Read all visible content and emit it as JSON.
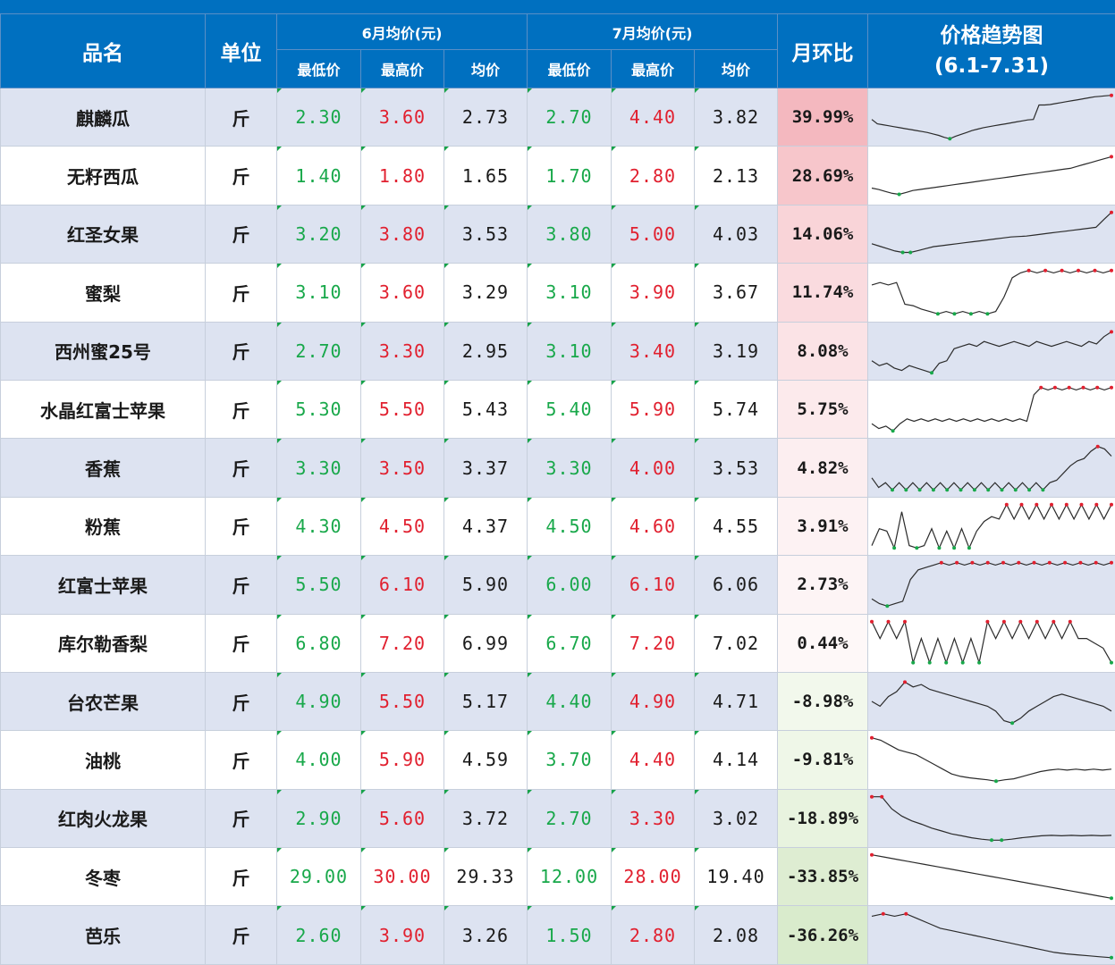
{
  "header": {
    "name": "品名",
    "unit": "单位",
    "june_group": "6月均价(元)",
    "july_group": "7月均价(元)",
    "low": "最低价",
    "high": "最高价",
    "avg": "均价",
    "mom": "月环比",
    "trend_title": "价格趋势图",
    "trend_range": "(6.1-7.31)"
  },
  "rows": [
    {
      "name": "麒麟瓜",
      "unit": "斤",
      "jun_low": "2.30",
      "jun_high": "3.60",
      "jun_avg": "2.73",
      "jul_low": "2.70",
      "jul_high": "4.40",
      "jul_avg": "3.82",
      "mom": "39.99%",
      "mom_value": 39.99,
      "heat": "#f4b8bf",
      "trend": [
        0.55,
        0.64,
        0.66,
        0.68,
        0.7,
        0.72,
        0.74,
        0.76,
        0.78,
        0.8,
        0.82,
        0.85,
        0.88,
        0.92,
        0.95,
        0.9,
        0.86,
        0.82,
        0.78,
        0.75,
        0.72,
        0.7,
        0.68,
        0.66,
        0.64,
        0.62,
        0.6,
        0.58,
        0.56,
        0.55,
        0.25,
        0.25,
        0.24,
        0.22,
        0.2,
        0.18,
        0.16,
        0.14,
        0.12,
        0.1,
        0.08,
        0.07,
        0.06,
        0.05
      ]
    },
    {
      "name": "无籽西瓜",
      "unit": "斤",
      "jun_low": "1.40",
      "jun_high": "1.80",
      "jun_avg": "1.65",
      "jul_low": "1.70",
      "jul_high": "2.80",
      "jul_avg": "2.13",
      "mom": "28.69%",
      "mom_value": 28.69,
      "heat": "#f7c6cb",
      "trend": [
        0.75,
        0.78,
        0.82,
        0.86,
        0.88,
        0.84,
        0.8,
        0.78,
        0.76,
        0.74,
        0.72,
        0.7,
        0.68,
        0.66,
        0.64,
        0.62,
        0.6,
        0.58,
        0.56,
        0.54,
        0.52,
        0.5,
        0.48,
        0.46,
        0.44,
        0.42,
        0.4,
        0.38,
        0.36,
        0.34,
        0.3,
        0.26,
        0.22,
        0.18,
        0.14,
        0.1
      ]
    },
    {
      "name": "红圣女果",
      "unit": "斤",
      "jun_low": "3.20",
      "jun_high": "3.80",
      "jun_avg": "3.53",
      "jul_low": "3.80",
      "jul_high": "5.00",
      "jul_avg": "4.03",
      "mom": "14.06%",
      "mom_value": 14.06,
      "heat": "#f9d4d8",
      "trend": [
        0.7,
        0.75,
        0.8,
        0.85,
        0.88,
        0.88,
        0.84,
        0.8,
        0.76,
        0.74,
        0.72,
        0.7,
        0.68,
        0.66,
        0.64,
        0.62,
        0.6,
        0.58,
        0.56,
        0.55,
        0.54,
        0.52,
        0.5,
        0.48,
        0.46,
        0.44,
        0.42,
        0.4,
        0.38,
        0.36,
        0.2,
        0.05
      ]
    },
    {
      "name": "蜜梨",
      "unit": "斤",
      "jun_low": "3.10",
      "jun_high": "3.60",
      "jun_avg": "3.29",
      "jul_low": "3.10",
      "jul_high": "3.90",
      "jul_avg": "3.67",
      "mom": "11.74%",
      "mom_value": 11.74,
      "heat": "#fadbdf",
      "trend": [
        0.35,
        0.3,
        0.35,
        0.3,
        0.75,
        0.78,
        0.85,
        0.9,
        0.95,
        0.9,
        0.95,
        0.9,
        0.95,
        0.9,
        0.95,
        0.9,
        0.6,
        0.2,
        0.1,
        0.05,
        0.1,
        0.05,
        0.1,
        0.05,
        0.1,
        0.05,
        0.1,
        0.05,
        0.1,
        0.05
      ]
    },
    {
      "name": "西州蜜25号",
      "unit": "斤",
      "jun_low": "2.70",
      "jun_high": "3.30",
      "jun_avg": "2.95",
      "jul_low": "3.10",
      "jul_high": "3.40",
      "jul_avg": "3.19",
      "mom": "8.08%",
      "mom_value": 8.08,
      "heat": "#fbe3e6",
      "trend": [
        0.7,
        0.8,
        0.75,
        0.85,
        0.9,
        0.8,
        0.85,
        0.9,
        0.95,
        0.75,
        0.7,
        0.45,
        0.4,
        0.35,
        0.4,
        0.3,
        0.35,
        0.4,
        0.35,
        0.3,
        0.35,
        0.4,
        0.3,
        0.35,
        0.4,
        0.35,
        0.3,
        0.35,
        0.4,
        0.3,
        0.35,
        0.2,
        0.1
      ]
    },
    {
      "name": "水晶红富士苹果",
      "unit": "斤",
      "jun_low": "5.30",
      "jun_high": "5.50",
      "jun_avg": "5.43",
      "jul_low": "5.40",
      "jul_high": "5.90",
      "jul_avg": "5.74",
      "mom": "5.75%",
      "mom_value": 5.75,
      "heat": "#fceaec",
      "trend": [
        0.8,
        0.9,
        0.85,
        0.95,
        0.8,
        0.7,
        0.75,
        0.7,
        0.75,
        0.7,
        0.75,
        0.7,
        0.75,
        0.7,
        0.75,
        0.7,
        0.75,
        0.7,
        0.75,
        0.7,
        0.75,
        0.7,
        0.75,
        0.2,
        0.05,
        0.1,
        0.05,
        0.1,
        0.05,
        0.1,
        0.05,
        0.1,
        0.05,
        0.1,
        0.05
      ]
    },
    {
      "name": "香蕉",
      "unit": "斤",
      "jun_low": "3.30",
      "jun_high": "3.50",
      "jun_avg": "3.37",
      "jul_low": "3.30",
      "jul_high": "4.00",
      "jul_avg": "3.53",
      "mom": "4.82%",
      "mom_value": 4.82,
      "heat": "#fceef0",
      "trend": [
        0.7,
        0.9,
        0.8,
        0.95,
        0.8,
        0.95,
        0.8,
        0.95,
        0.8,
        0.95,
        0.8,
        0.95,
        0.8,
        0.95,
        0.8,
        0.95,
        0.8,
        0.95,
        0.8,
        0.95,
        0.8,
        0.95,
        0.8,
        0.95,
        0.8,
        0.95,
        0.8,
        0.75,
        0.6,
        0.45,
        0.35,
        0.3,
        0.15,
        0.05,
        0.1,
        0.25
      ]
    },
    {
      "name": "粉蕉",
      "unit": "斤",
      "jun_low": "4.30",
      "jun_high": "4.50",
      "jun_avg": "4.37",
      "jul_low": "4.50",
      "jul_high": "4.60",
      "jul_avg": "4.55",
      "mom": "3.91%",
      "mom_value": 3.91,
      "heat": "#fdf2f3",
      "trend": [
        0.9,
        0.55,
        0.6,
        0.95,
        0.2,
        0.9,
        0.95,
        0.9,
        0.55,
        0.95,
        0.6,
        0.95,
        0.55,
        0.95,
        0.6,
        0.4,
        0.3,
        0.35,
        0.05,
        0.35,
        0.05,
        0.35,
        0.05,
        0.35,
        0.05,
        0.35,
        0.05,
        0.35,
        0.05,
        0.35,
        0.05,
        0.35,
        0.05
      ]
    },
    {
      "name": "红富士苹果",
      "unit": "斤",
      "jun_low": "5.50",
      "jun_high": "6.10",
      "jun_avg": "5.90",
      "jul_low": "6.00",
      "jul_high": "6.10",
      "jul_avg": "6.06",
      "mom": "2.73%",
      "mom_value": 2.73,
      "heat": "#fdf4f5",
      "trend": [
        0.8,
        0.9,
        0.95,
        0.9,
        0.85,
        0.4,
        0.2,
        0.15,
        0.1,
        0.05,
        0.1,
        0.05,
        0.1,
        0.05,
        0.1,
        0.05,
        0.1,
        0.05,
        0.1,
        0.05,
        0.1,
        0.05,
        0.1,
        0.05,
        0.1,
        0.05,
        0.1,
        0.05,
        0.1,
        0.05,
        0.1,
        0.05
      ]
    },
    {
      "name": "库尔勒香梨",
      "unit": "斤",
      "jun_low": "6.80",
      "jun_high": "7.20",
      "jun_avg": "6.99",
      "jul_low": "6.70",
      "jul_high": "7.20",
      "jul_avg": "7.02",
      "mom": "0.44%",
      "mom_value": 0.44,
      "heat": "#fef8f8",
      "trend": [
        0.05,
        0.4,
        0.05,
        0.4,
        0.05,
        0.9,
        0.4,
        0.9,
        0.4,
        0.9,
        0.4,
        0.9,
        0.4,
        0.9,
        0.05,
        0.4,
        0.05,
        0.4,
        0.05,
        0.4,
        0.05,
        0.4,
        0.05,
        0.4,
        0.05,
        0.4,
        0.4,
        0.5,
        0.6,
        0.9
      ]
    },
    {
      "name": "台农芒果",
      "unit": "斤",
      "jun_low": "4.90",
      "jun_high": "5.50",
      "jun_avg": "5.17",
      "jul_low": "4.40",
      "jul_high": "4.90",
      "jul_avg": "4.71",
      "mom": "-8.98%",
      "mom_value": -8.98,
      "heat": "#f2f8ec",
      "trend": [
        0.5,
        0.6,
        0.4,
        0.3,
        0.1,
        0.2,
        0.15,
        0.25,
        0.3,
        0.35,
        0.4,
        0.45,
        0.5,
        0.55,
        0.6,
        0.7,
        0.9,
        0.95,
        0.85,
        0.7,
        0.6,
        0.5,
        0.4,
        0.35,
        0.4,
        0.45,
        0.5,
        0.55,
        0.6,
        0.7
      ]
    },
    {
      "name": "油桃",
      "unit": "斤",
      "jun_low": "4.00",
      "jun_high": "5.90",
      "jun_avg": "4.59",
      "jul_low": "3.70",
      "jul_high": "4.40",
      "jul_avg": "4.14",
      "mom": "-9.81%",
      "mom_value": -9.81,
      "heat": "#eff7e8",
      "trend": [
        0.05,
        0.1,
        0.2,
        0.3,
        0.35,
        0.4,
        0.5,
        0.6,
        0.7,
        0.8,
        0.85,
        0.88,
        0.9,
        0.92,
        0.95,
        0.92,
        0.9,
        0.85,
        0.8,
        0.75,
        0.72,
        0.7,
        0.72,
        0.7,
        0.72,
        0.7,
        0.72,
        0.7
      ]
    },
    {
      "name": "红肉火龙果",
      "unit": "斤",
      "jun_low": "2.90",
      "jun_high": "5.60",
      "jun_avg": "3.72",
      "jul_low": "2.70",
      "jul_high": "3.30",
      "jul_avg": "3.02",
      "mom": "-18.89%",
      "mom_value": -18.89,
      "heat": "#e8f3df",
      "trend": [
        0.05,
        0.05,
        0.3,
        0.45,
        0.55,
        0.62,
        0.7,
        0.76,
        0.82,
        0.86,
        0.9,
        0.93,
        0.95,
        0.95,
        0.93,
        0.9,
        0.88,
        0.86,
        0.85,
        0.86,
        0.85,
        0.86,
        0.85,
        0.86,
        0.85
      ]
    },
    {
      "name": "冬枣",
      "unit": "斤",
      "jun_low": "29.00",
      "jun_high": "30.00",
      "jun_avg": "29.33",
      "jul_low": "12.00",
      "jul_high": "28.00",
      "jul_avg": "19.40",
      "mom": "-33.85%",
      "mom_value": -33.85,
      "heat": "#deedd2",
      "trend": [
        0.05,
        0.1,
        0.15,
        0.2,
        0.25,
        0.3,
        0.35,
        0.4,
        0.45,
        0.5,
        0.55,
        0.6,
        0.65,
        0.7,
        0.75,
        0.8,
        0.85,
        0.9,
        0.95
      ]
    },
    {
      "name": "芭乐",
      "unit": "斤",
      "jun_low": "2.60",
      "jun_high": "3.90",
      "jun_avg": "3.26",
      "jul_low": "1.50",
      "jul_high": "2.80",
      "jul_avg": "2.08",
      "mom": "-36.26%",
      "mom_value": -36.26,
      "heat": "#d9ebcc",
      "trend": [
        0.1,
        0.05,
        0.1,
        0.05,
        0.15,
        0.25,
        0.35,
        0.4,
        0.45,
        0.5,
        0.55,
        0.6,
        0.65,
        0.7,
        0.75,
        0.8,
        0.85,
        0.88,
        0.9,
        0.92,
        0.94,
        0.96
      ]
    }
  ],
  "colors": {
    "header_bg": "#0070c0",
    "low_text": "#18a84a",
    "high_text": "#e1202f",
    "row_band": "#dde3f1",
    "line": "#2b2b2b",
    "peak_marker": "#e1202f",
    "low_marker": "#18a84a"
  }
}
